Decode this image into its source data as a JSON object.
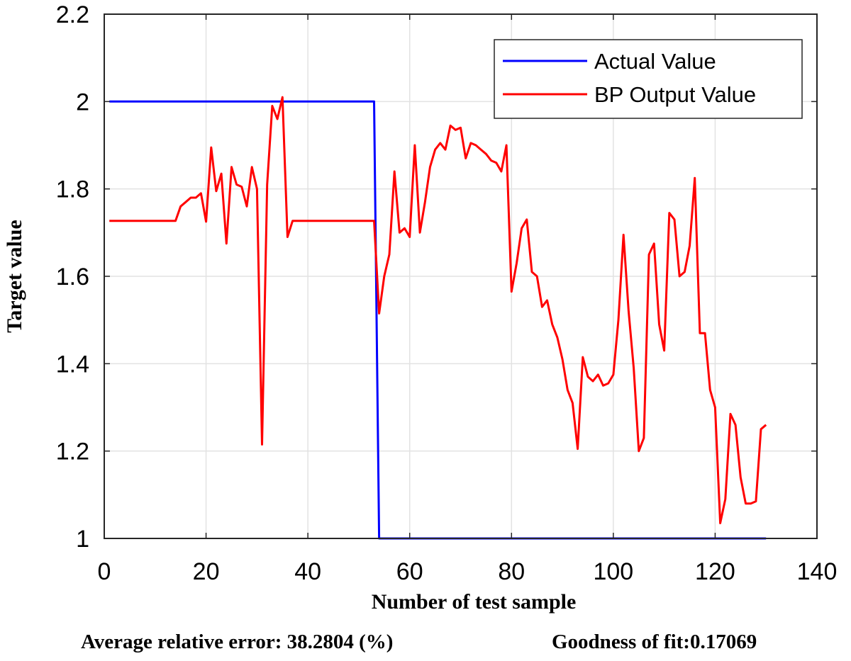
{
  "chart_data": {
    "type": "line",
    "xlabel": "Number of test sample",
    "ylabel": "Target value",
    "xlim": [
      0,
      140
    ],
    "ylim": [
      1,
      2.2
    ],
    "xticks": [
      0,
      20,
      40,
      60,
      80,
      100,
      120,
      140
    ],
    "yticks": [
      1,
      1.2,
      1.4,
      1.6,
      1.8,
      2,
      2.2
    ],
    "grid": true,
    "legend_position": "top-right",
    "series": [
      {
        "name": "Actual Value",
        "color": "#0000ff",
        "points": [
          [
            1,
            2.0
          ],
          [
            53,
            2.0
          ],
          [
            54,
            1.0
          ],
          [
            130,
            1.0
          ]
        ]
      },
      {
        "name": "BP Output Value",
        "color": "#ff0000",
        "points": [
          [
            1,
            1.727
          ],
          [
            14,
            1.727
          ],
          [
            15,
            1.76
          ],
          [
            16,
            1.77
          ],
          [
            17,
            1.78
          ],
          [
            18,
            1.78
          ],
          [
            19,
            1.79
          ],
          [
            20,
            1.725
          ],
          [
            21,
            1.895
          ],
          [
            22,
            1.795
          ],
          [
            23,
            1.835
          ],
          [
            24,
            1.675
          ],
          [
            25,
            1.85
          ],
          [
            26,
            1.81
          ],
          [
            27,
            1.805
          ],
          [
            28,
            1.76
          ],
          [
            29,
            1.85
          ],
          [
            30,
            1.8
          ],
          [
            31,
            1.215
          ],
          [
            32,
            1.81
          ],
          [
            33,
            1.99
          ],
          [
            34,
            1.96
          ],
          [
            35,
            2.01
          ],
          [
            36,
            1.69
          ],
          [
            37,
            1.727
          ],
          [
            53,
            1.727
          ],
          [
            54,
            1.515
          ],
          [
            55,
            1.6
          ],
          [
            56,
            1.65
          ],
          [
            57,
            1.84
          ],
          [
            58,
            1.7
          ],
          [
            59,
            1.71
          ],
          [
            60,
            1.69
          ],
          [
            61,
            1.9
          ],
          [
            62,
            1.7
          ],
          [
            63,
            1.77
          ],
          [
            64,
            1.85
          ],
          [
            65,
            1.89
          ],
          [
            66,
            1.905
          ],
          [
            67,
            1.89
          ],
          [
            68,
            1.945
          ],
          [
            69,
            1.935
          ],
          [
            70,
            1.94
          ],
          [
            71,
            1.87
          ],
          [
            72,
            1.905
          ],
          [
            73,
            1.9
          ],
          [
            74,
            1.89
          ],
          [
            75,
            1.88
          ],
          [
            76,
            1.865
          ],
          [
            77,
            1.86
          ],
          [
            78,
            1.84
          ],
          [
            79,
            1.9
          ],
          [
            80,
            1.565
          ],
          [
            81,
            1.63
          ],
          [
            82,
            1.71
          ],
          [
            83,
            1.73
          ],
          [
            84,
            1.61
          ],
          [
            85,
            1.6
          ],
          [
            86,
            1.53
          ],
          [
            87,
            1.545
          ],
          [
            88,
            1.49
          ],
          [
            89,
            1.46
          ],
          [
            90,
            1.41
          ],
          [
            91,
            1.34
          ],
          [
            92,
            1.31
          ],
          [
            93,
            1.205
          ],
          [
            94,
            1.415
          ],
          [
            95,
            1.37
          ],
          [
            96,
            1.36
          ],
          [
            97,
            1.375
          ],
          [
            98,
            1.35
          ],
          [
            99,
            1.355
          ],
          [
            100,
            1.375
          ],
          [
            101,
            1.5
          ],
          [
            102,
            1.695
          ],
          [
            103,
            1.52
          ],
          [
            104,
            1.39
          ],
          [
            105,
            1.2
          ],
          [
            106,
            1.23
          ],
          [
            107,
            1.65
          ],
          [
            108,
            1.675
          ],
          [
            109,
            1.49
          ],
          [
            110,
            1.43
          ],
          [
            111,
            1.745
          ],
          [
            112,
            1.73
          ],
          [
            113,
            1.6
          ],
          [
            114,
            1.61
          ],
          [
            115,
            1.67
          ],
          [
            116,
            1.825
          ],
          [
            117,
            1.47
          ],
          [
            118,
            1.47
          ],
          [
            119,
            1.34
          ],
          [
            120,
            1.3
          ],
          [
            121,
            1.035
          ],
          [
            122,
            1.09
          ],
          [
            123,
            1.285
          ],
          [
            124,
            1.26
          ],
          [
            125,
            1.14
          ],
          [
            126,
            1.08
          ],
          [
            127,
            1.08
          ],
          [
            128,
            1.085
          ],
          [
            129,
            1.25
          ],
          [
            130,
            1.26
          ]
        ]
      }
    ]
  },
  "footer": {
    "error": "Average relative error:  38.2804 (%)",
    "fit": "Goodness of fit:0.17069"
  }
}
